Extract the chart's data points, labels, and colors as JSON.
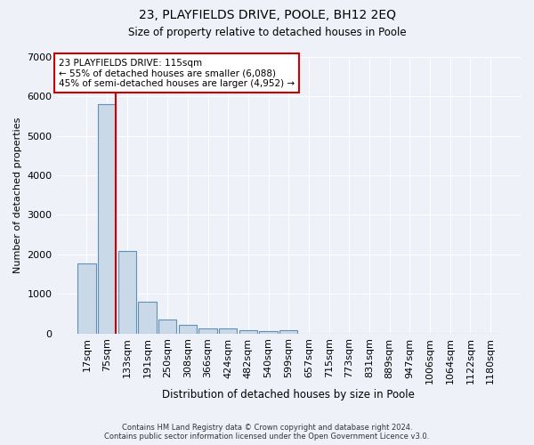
{
  "title_line1": "23, PLAYFIELDS DRIVE, POOLE, BH12 2EQ",
  "title_line2": "Size of property relative to detached houses in Poole",
  "xlabel": "Distribution of detached houses by size in Poole",
  "ylabel": "Number of detached properties",
  "bar_labels": [
    "17sqm",
    "75sqm",
    "133sqm",
    "191sqm",
    "250sqm",
    "308sqm",
    "366sqm",
    "424sqm",
    "482sqm",
    "540sqm",
    "599sqm",
    "657sqm",
    "715sqm",
    "773sqm",
    "831sqm",
    "889sqm",
    "947sqm",
    "1006sqm",
    "1064sqm",
    "1122sqm",
    "1180sqm"
  ],
  "bar_values": [
    1780,
    5800,
    2080,
    800,
    340,
    220,
    135,
    115,
    80,
    65,
    70,
    0,
    0,
    0,
    0,
    0,
    0,
    0,
    0,
    0,
    0
  ],
  "bar_color": "#c9d9e8",
  "bar_edge_color": "#6090b8",
  "vline_color": "#cc0000",
  "annotation_title": "23 PLAYFIELDS DRIVE: 115sqm",
  "annotation_line1": "← 55% of detached houses are smaller (6,088)",
  "annotation_line2": "45% of semi-detached houses are larger (4,952) →",
  "annotation_box_color": "#ffffff",
  "annotation_box_edge": "#cc0000",
  "ylim": [
    0,
    7000
  ],
  "yticks": [
    0,
    1000,
    2000,
    3000,
    4000,
    5000,
    6000,
    7000
  ],
  "background_color": "#eef2f8",
  "grid_color": "#ffffff",
  "footer_line1": "Contains HM Land Registry data © Crown copyright and database right 2024.",
  "footer_line2": "Contains public sector information licensed under the Open Government Licence v3.0."
}
